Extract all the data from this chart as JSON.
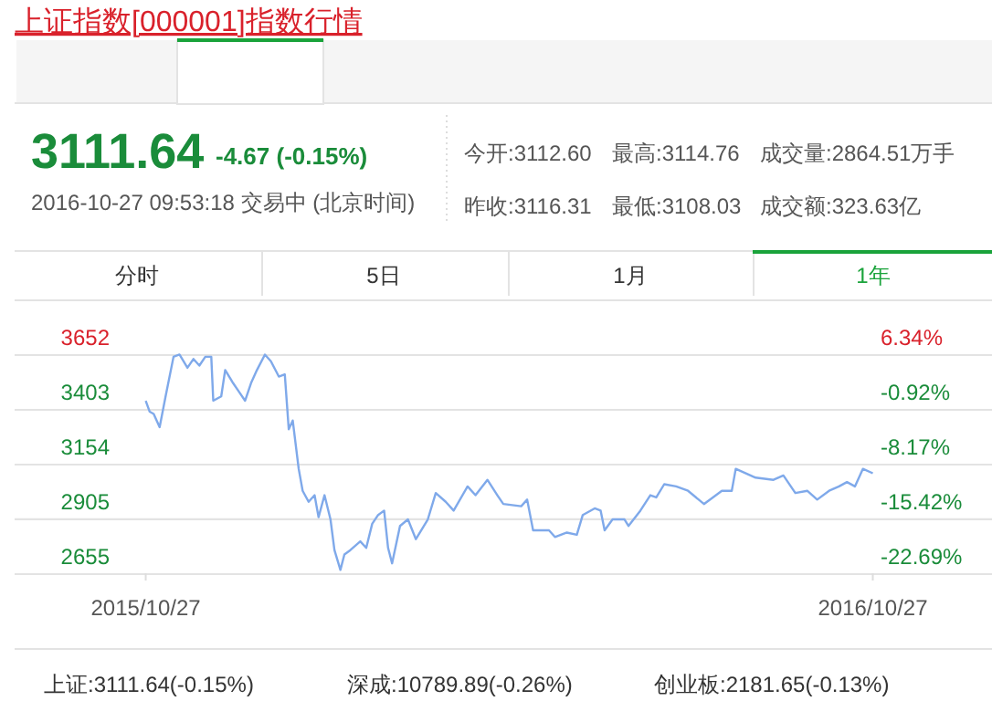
{
  "chart_data": {
    "type": "line",
    "title": "上证指数[000001]指数行情",
    "annotations": [
      "3111.64",
      "-4.67 (-0.15%)",
      "2016-10-27 09:53:18 交易中 (北京时间)",
      "今开:3112.60",
      "最高:3114.76",
      "成交量:2864.51万手",
      "昨收:3116.31",
      "最低:3108.03",
      "成交额:323.63亿",
      "分时",
      "5日",
      "1月",
      "1年",
      "上证:3111.64(-0.15%)",
      "深成:10789.89(-0.26%)",
      "创业板:2181.65(-0.13%)"
    ],
    "x": [
      "2015-10-27",
      "2015-10-29",
      "2015-10-31",
      "2015-11-03",
      "2015-11-06",
      "2015-11-10",
      "2015-11-13",
      "2015-11-17",
      "2015-11-20",
      "2015-11-23",
      "2015-11-26",
      "2015-11-29",
      "2015-11-30",
      "2015-12-04",
      "2015-12-06",
      "2015-12-10",
      "2015-12-13",
      "2015-12-16",
      "2015-12-19",
      "2015-12-22",
      "2015-12-26",
      "2015-12-29",
      "2016-01-02",
      "2016-01-05",
      "2016-01-07",
      "2016-01-09",
      "2016-01-12",
      "2016-01-14",
      "2016-01-17",
      "2016-01-20",
      "2016-01-22",
      "2016-01-25",
      "2016-01-28",
      "2016-01-30",
      "2016-02-02",
      "2016-02-04",
      "2016-02-07",
      "2016-02-12",
      "2016-02-15",
      "2016-02-18",
      "2016-02-21",
      "2016-02-24",
      "2016-02-26",
      "2016-02-28",
      "2016-03-03",
      "2016-03-07",
      "2016-03-11",
      "2016-03-17",
      "2016-03-21",
      "2016-03-26",
      "2016-03-30",
      "2016-04-06",
      "2016-04-10",
      "2016-04-16",
      "2016-04-21",
      "2016-04-24",
      "2016-05-03",
      "2016-05-06",
      "2016-05-09",
      "2016-05-17",
      "2016-05-20",
      "2016-05-26",
      "2016-05-31",
      "2016-06-03",
      "2016-06-09",
      "2016-06-12",
      "2016-06-14",
      "2016-06-18",
      "2016-06-24",
      "2016-06-26",
      "2016-07-02",
      "2016-07-07",
      "2016-07-10",
      "2016-07-14",
      "2016-07-20",
      "2016-07-26",
      "2016-08-03",
      "2016-08-12",
      "2016-08-17",
      "2016-08-19",
      "2016-08-29",
      "2016-09-07",
      "2016-09-12",
      "2016-09-18",
      "2016-09-24",
      "2016-09-29",
      "2016-10-05",
      "2016-10-10",
      "2016-10-14",
      "2016-10-18",
      "2016-10-22",
      "2016-10-27"
    ],
    "series": [
      {
        "color": "#7fa9ea",
        "values": [
          3440,
          3390,
          3380,
          3320,
          3460,
          3640,
          3650,
          3590,
          3630,
          3600,
          3640,
          3640,
          3440,
          3460,
          3580,
          3520,
          3480,
          3440,
          3520,
          3580,
          3650,
          3620,
          3550,
          3560,
          3310,
          3350,
          3130,
          3030,
          2980,
          3010,
          2910,
          3010,
          2900,
          2760,
          2670,
          2740,
          2760,
          2800,
          2770,
          2880,
          2920,
          2940,
          2770,
          2700,
          2870,
          2900,
          2810,
          2900,
          3020,
          2980,
          2940,
          3050,
          3010,
          3080,
          3010,
          2970,
          2960,
          2990,
          2850,
          2850,
          2820,
          2840,
          2830,
          2920,
          2950,
          2940,
          2850,
          2900,
          2900,
          2870,
          2940,
          3010,
          3000,
          3060,
          3050,
          3030,
          2970,
          3030,
          3030,
          3130,
          3090,
          3080,
          3100,
          3020,
          3030,
          2990,
          3030,
          3050,
          3070,
          3050,
          3130,
          3110
        ]
      }
    ],
    "xlim": [
      "2015-08-22",
      "2016-12-26"
    ],
    "xticks": [
      {
        "value": "2015-10-27",
        "label": "2015/10/27"
      },
      {
        "value": "2016-10-27",
        "label": "2016/10/27"
      }
    ],
    "ylim": [
      2655,
      3652
    ],
    "yticks": [
      3652,
      3403,
      3154,
      2905,
      2655
    ],
    "y2lim": [
      -22.69,
      6.34
    ],
    "y2ticks": [
      {
        "value": 6.34,
        "label": "6.34%"
      },
      {
        "value": -0.92,
        "label": "-0.92%"
      },
      {
        "value": -8.17,
        "label": "-8.17%"
      },
      {
        "value": -15.42,
        "label": "-15.42%"
      },
      {
        "value": -22.69,
        "label": "-22.69%"
      }
    ],
    "grid": "y"
  }
}
